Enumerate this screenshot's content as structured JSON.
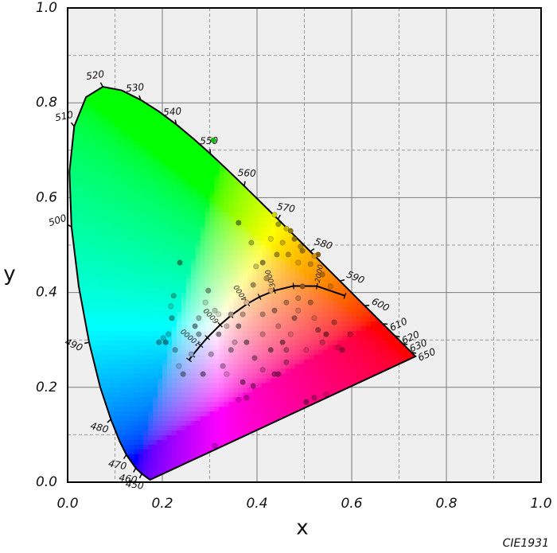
{
  "chart_data": {
    "type": "scatter",
    "title": "CIE1931",
    "x_label": "x",
    "y_label": "y",
    "xlim": [
      0,
      1
    ],
    "ylim": [
      0,
      1
    ],
    "xticks": [
      {
        "value": 0,
        "label": "0.0"
      },
      0.2,
      0.4,
      0.6,
      0.8,
      {
        "value": 1,
        "label": "1.0"
      }
    ],
    "yticks": [
      {
        "value": 0,
        "label": "0.0"
      },
      0.2,
      0.4,
      0.6,
      0.8,
      {
        "value": 1,
        "label": "1.0"
      }
    ],
    "minor_ticks": [
      0.1,
      0.3,
      0.5,
      0.7,
      0.9
    ],
    "grid": true,
    "spectral_locus": {
      "x": [
        0.1741,
        0.1566,
        0.144,
        0.1241,
        0.1096,
        0.0913,
        0.0687,
        0.0454,
        0.0235,
        0.0082,
        0.0039,
        0.0139,
        0.0389,
        0.0743,
        0.1142,
        0.1547,
        0.1929,
        0.2296,
        0.2658,
        0.3016,
        0.3373,
        0.3731,
        0.4087,
        0.4441,
        0.4788,
        0.5125,
        0.5448,
        0.5752,
        0.6029,
        0.627,
        0.6658,
        0.6915,
        0.7079,
        0.719,
        0.726,
        0.7347
      ],
      "y": [
        0.005,
        0.0177,
        0.0297,
        0.0578,
        0.0868,
        0.1327,
        0.2007,
        0.295,
        0.4127,
        0.5384,
        0.6548,
        0.7502,
        0.812,
        0.8338,
        0.8262,
        0.8059,
        0.7816,
        0.7543,
        0.7243,
        0.6923,
        0.6589,
        0.6245,
        0.5896,
        0.5547,
        0.5202,
        0.4866,
        0.4544,
        0.4242,
        0.3965,
        0.3725,
        0.334,
        0.3083,
        0.292,
        0.2809,
        0.274,
        0.2653
      ],
      "wavelengths": [
        null,
        450,
        460,
        470,
        null,
        480,
        null,
        490,
        null,
        500,
        null,
        510,
        null,
        520,
        null,
        530,
        null,
        540,
        null,
        550,
        null,
        560,
        null,
        570,
        null,
        580,
        null,
        590,
        null,
        600,
        610,
        620,
        630,
        null,
        650,
        null
      ]
    },
    "planckian_locus": {
      "x": [
        0.5857,
        0.5267,
        0.477,
        0.4369,
        0.4053,
        0.3805,
        0.3451,
        0.3221,
        0.2952,
        0.2807,
        0.2637,
        0.2565
      ],
      "y": [
        0.3931,
        0.4133,
        0.4137,
        0.4041,
        0.3907,
        0.3768,
        0.3516,
        0.3318,
        0.3048,
        0.2884,
        0.2675,
        0.2577
      ],
      "labels": [
        null,
        2000,
        null,
        3000,
        null,
        4000,
        null,
        6000,
        null,
        10000,
        null,
        null
      ]
    },
    "series": [
      {
        "x": [
          0.237,
          0.224,
          0.218,
          0.22,
          0.213,
          0.207,
          0.227,
          0.235,
          0.244,
          0.261,
          0.269,
          0.277,
          0.291,
          0.297,
          0.311,
          0.319,
          0.328,
          0.336,
          0.345,
          0.353,
          0.361,
          0.37,
          0.378,
          0.392,
          0.398,
          0.412,
          0.42,
          0.429,
          0.437,
          0.445,
          0.454,
          0.462,
          0.471,
          0.479,
          0.487,
          0.496,
          0.513,
          0.521,
          0.529,
          0.538,
          0.546,
          0.563,
          0.571,
          0.58,
          0.597,
          0.361,
          0.388,
          0.429,
          0.442,
          0.454,
          0.471,
          0.466,
          0.487,
          0.496,
          0.513,
          0.529,
          0.538,
          0.555,
          0.395,
          0.412,
          0.37,
          0.378,
          0.361,
          0.392,
          0.311,
          0.504,
          0.521,
          0.546,
          0.437,
          0.308,
          0.286,
          0.303,
          0.319,
          0.345,
          0.412,
          0.429,
          0.462,
          0.487,
          0.193,
          0.202,
          0.445,
          0.462,
          0.504,
          0.277,
          0.336,
          0.378,
          0.412,
          0.437,
          0.445,
          0.462,
          0.479,
          0.492,
          0.521
        ],
        "values": [
          0.463,
          0.393,
          0.371,
          0.346,
          0.312,
          0.295,
          0.279,
          0.245,
          0.228,
          0.27,
          0.329,
          0.346,
          0.379,
          0.404,
          0.362,
          0.312,
          0.245,
          0.228,
          0.279,
          0.295,
          0.329,
          0.354,
          0.379,
          0.416,
          0.455,
          0.463,
          0.43,
          0.404,
          0.362,
          0.329,
          0.295,
          0.279,
          0.312,
          0.346,
          0.388,
          0.413,
          0.379,
          0.346,
          0.321,
          0.295,
          0.312,
          0.337,
          0.284,
          0.279,
          0.312,
          0.547,
          0.505,
          0.513,
          0.48,
          0.505,
          0.53,
          0.48,
          0.463,
          0.488,
          0.46,
          0.48,
          0.438,
          0.413,
          0.262,
          0.237,
          0.211,
          0.178,
          0.174,
          0.203,
          0.077,
          0.169,
          0.178,
          0.185,
          0.228,
          0.721,
          0.228,
          0.27,
          0.354,
          0.354,
          0.312,
          0.279,
          0.379,
          0.362,
          0.295,
          0.304,
          0.228,
          0.253,
          0.279,
          0.312,
          0.329,
          0.295,
          0.354,
          0.564,
          0.544,
          0.535,
          0.513,
          0.497,
          0.477
        ]
      }
    ]
  }
}
